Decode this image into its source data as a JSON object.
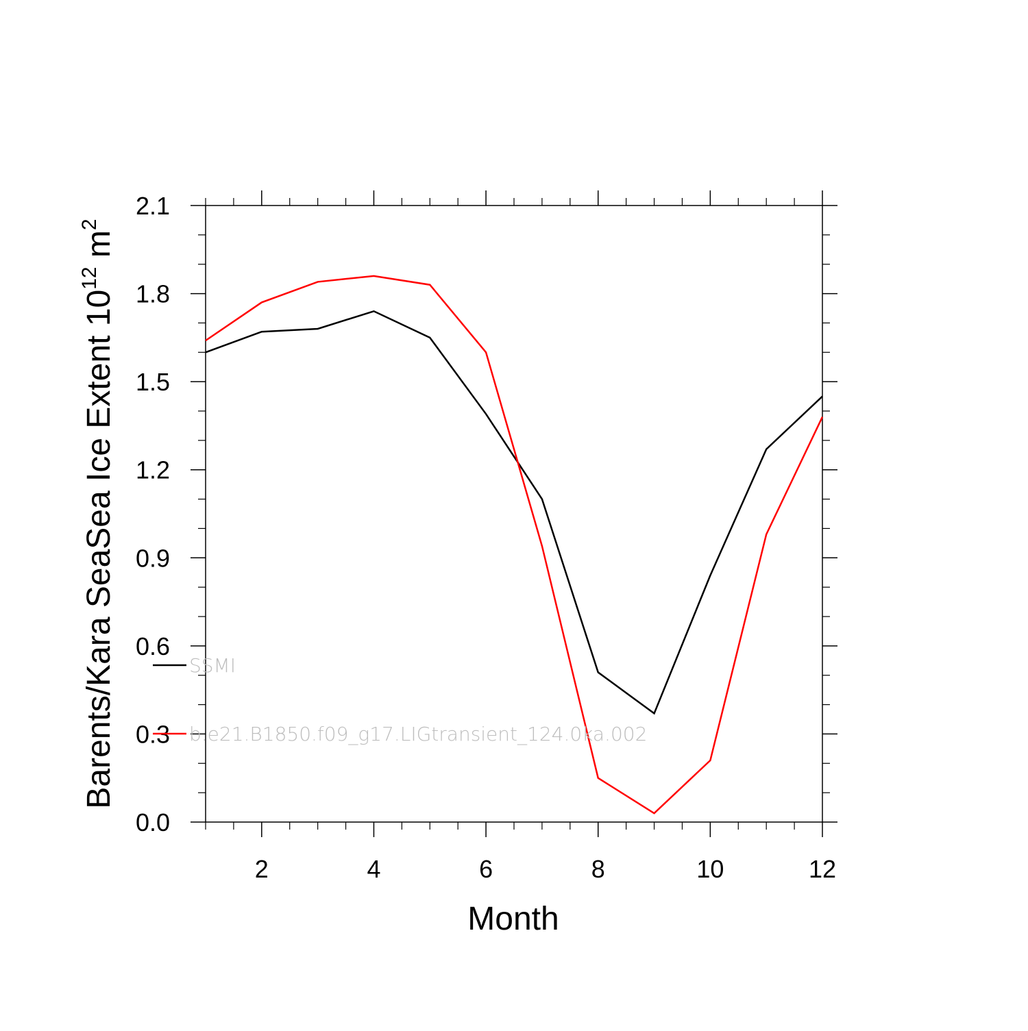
{
  "chart_data": {
    "type": "line",
    "xlabel": "Month",
    "ylabel": {
      "prefix": "Barents/Kara SeaSea Ice Extent 10",
      "exponent": "12",
      "unit": " m",
      "unit_exponent": "2"
    },
    "xlim": [
      1,
      12
    ],
    "ylim": [
      0.0,
      2.1
    ],
    "x_ticks": [
      2,
      4,
      6,
      8,
      10,
      12
    ],
    "x_tick_labels": [
      "2",
      "4",
      "6",
      "8",
      "10",
      "12"
    ],
    "y_ticks": [
      0.0,
      0.3,
      0.6,
      0.9,
      1.2,
      1.5,
      1.8,
      2.1
    ],
    "y_tick_labels": [
      "0.0",
      "0.3",
      "0.6",
      "0.9",
      "1.2",
      "1.5",
      "1.8",
      "2.1"
    ],
    "grid": false,
    "legend_position": "bottom-left inside",
    "x": [
      1,
      2,
      3,
      4,
      5,
      6,
      7,
      8,
      9,
      10,
      11,
      12
    ],
    "series": [
      {
        "name": "SSMI",
        "color": "#000000",
        "values": [
          1.6,
          1.67,
          1.68,
          1.74,
          1.65,
          1.39,
          1.1,
          0.51,
          0.37,
          0.84,
          1.27,
          1.45
        ]
      },
      {
        "name": "b.e21.B1850.f09_g17.LIGtransient_124.0ka.002",
        "color": "#ff0000",
        "values": [
          1.64,
          1.77,
          1.84,
          1.86,
          1.83,
          1.6,
          0.94,
          0.15,
          0.03,
          0.21,
          0.98,
          1.38
        ]
      }
    ]
  }
}
